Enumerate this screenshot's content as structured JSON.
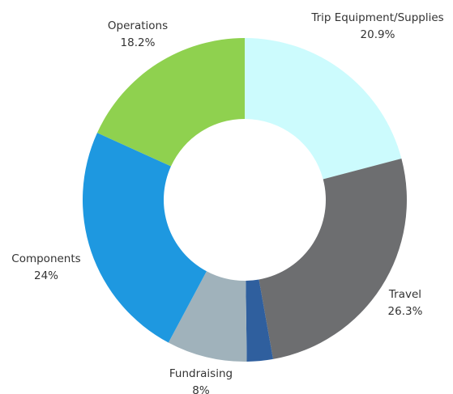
{
  "chart_data": {
    "type": "donut",
    "categories": [
      "Trip Equipment/Supplies",
      "Travel",
      null,
      "Fundraising",
      "Components",
      "Operations"
    ],
    "values": [
      20.9,
      26.3,
      2.6,
      8,
      24,
      18.2
    ],
    "value_labels": [
      "20.9%",
      "26.3%",
      null,
      "8%",
      "24%",
      "18.2%"
    ],
    "colors": [
      "#ccfbfd",
      "#6d6e70",
      "#2f5f9e",
      "#a0b2bb",
      "#1e98e0",
      "#8fd14f"
    ]
  }
}
